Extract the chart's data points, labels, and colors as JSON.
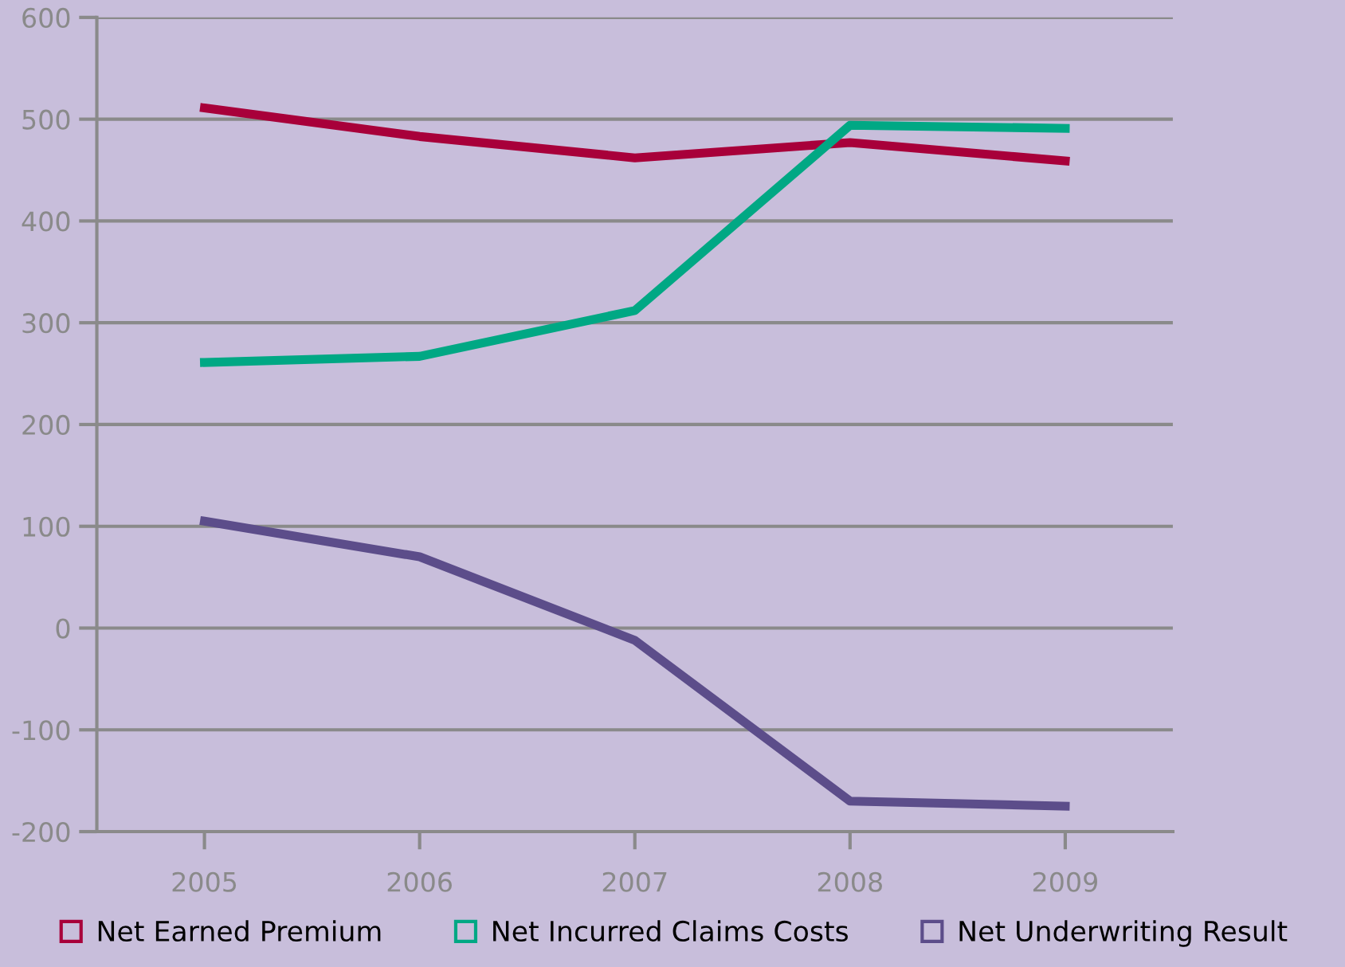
{
  "chart_data": {
    "type": "line",
    "categories": [
      "2005",
      "2006",
      "2007",
      "2008",
      "2009"
    ],
    "series": [
      {
        "name": "Net Earned Premium",
        "color": "#a8003a",
        "values": [
          511,
          483,
          462,
          477,
          459
        ]
      },
      {
        "name": "Net Incurred Claims Costs",
        "color": "#00a884",
        "values": [
          261,
          267,
          312,
          494,
          491
        ]
      },
      {
        "name": "Net Underwriting Result",
        "color": "#5c4d8a",
        "values": [
          105,
          70,
          -12,
          -170,
          -175
        ]
      }
    ],
    "ylim": [
      -200,
      600
    ],
    "yticks": [
      -200,
      -100,
      0,
      100,
      200,
      300,
      400,
      500,
      600
    ],
    "grid": "y",
    "legend": "bottom",
    "marker": "none",
    "line_style": "solid"
  }
}
